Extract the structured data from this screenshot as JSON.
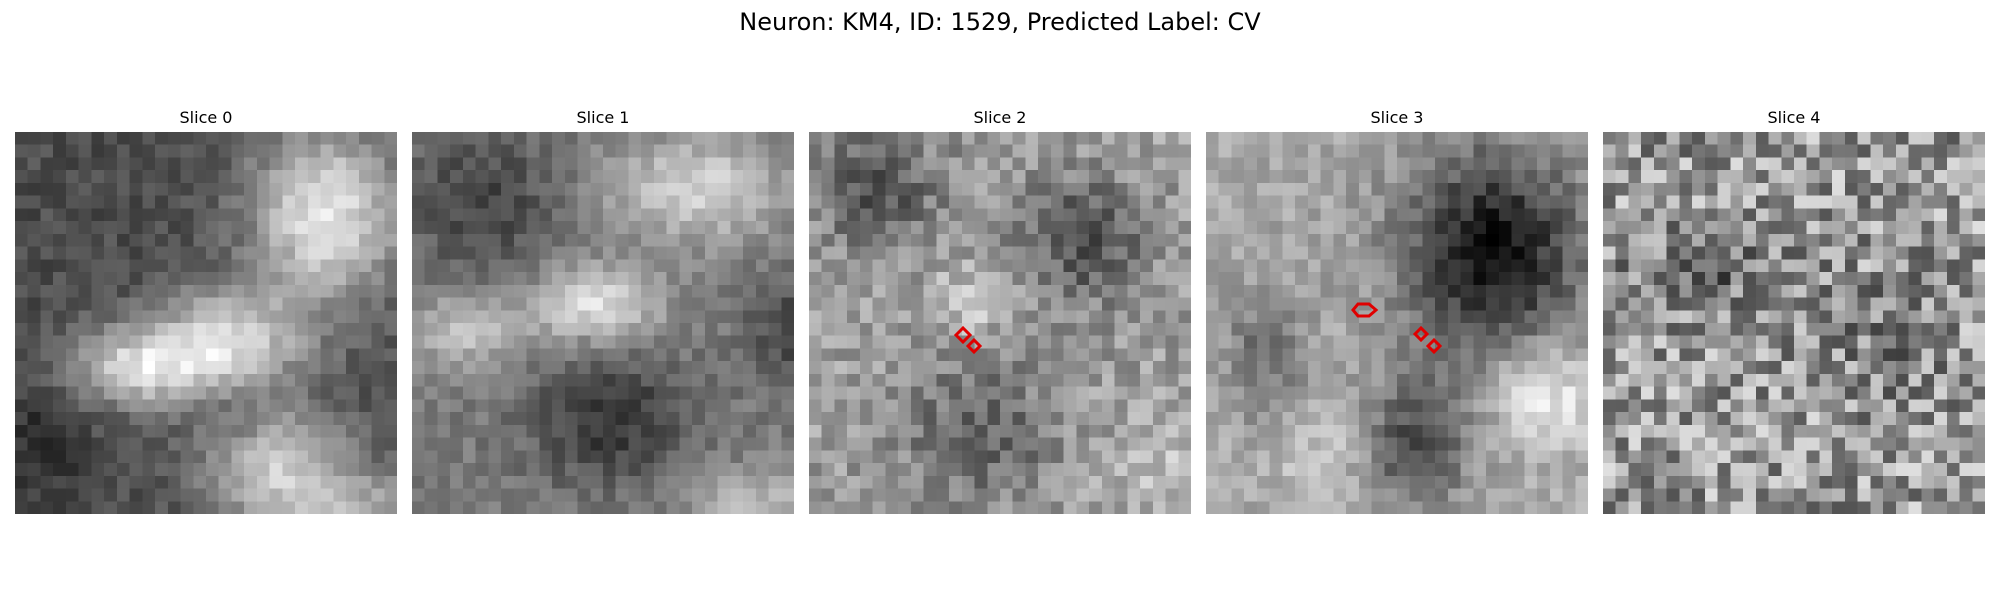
{
  "figure": {
    "title": "Neuron: KM4, ID: 1529, Predicted Label: CV"
  },
  "panels": [
    {
      "title": "Slice 0"
    },
    {
      "title": "Slice 1"
    },
    {
      "title": "Slice 2"
    },
    {
      "title": "Slice 3"
    },
    {
      "title": "Slice 4"
    }
  ],
  "colors": {
    "contour": "#e00000"
  }
}
